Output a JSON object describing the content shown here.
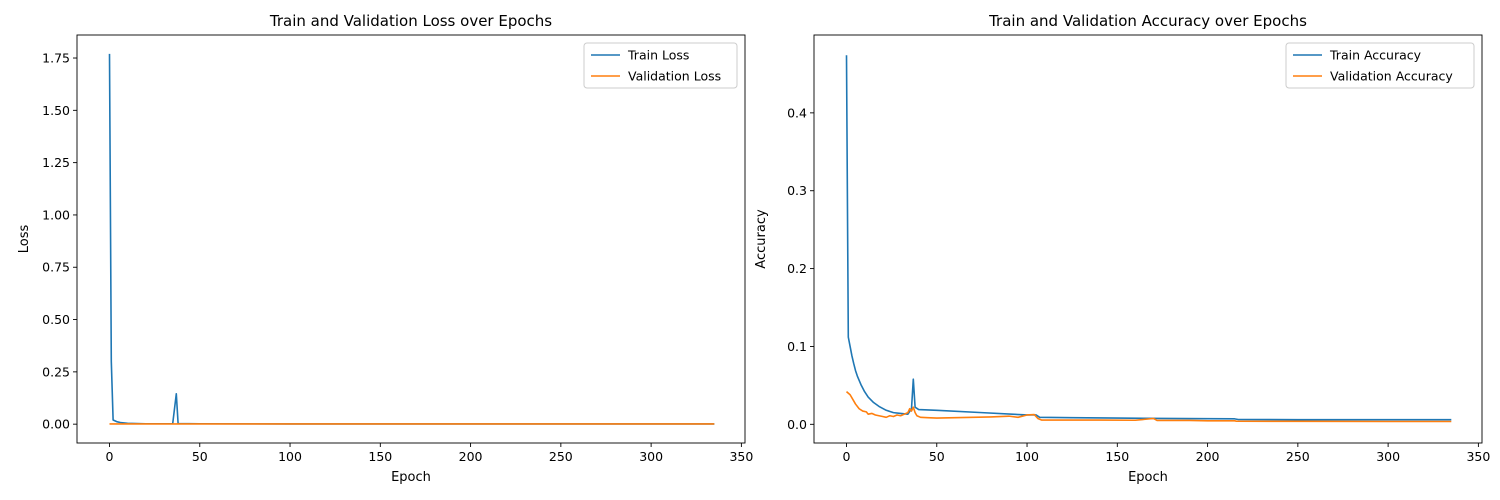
{
  "chart_data": [
    {
      "type": "line",
      "title": "Train and Validation Loss over Epochs",
      "xlabel": "Epoch",
      "ylabel": "Loss",
      "xlim": [
        -18,
        352
      ],
      "ylim": [
        -0.09,
        1.86
      ],
      "xticks": [
        0,
        50,
        100,
        150,
        200,
        250,
        300,
        350
      ],
      "xtick_labels": [
        "0",
        "50",
        "100",
        "150",
        "200",
        "250",
        "300",
        "350"
      ],
      "yticks": [
        0.0,
        0.25,
        0.5,
        0.75,
        1.0,
        1.25,
        1.5,
        1.75
      ],
      "ytick_labels": [
        "0.00",
        "0.25",
        "0.50",
        "0.75",
        "1.00",
        "1.25",
        "1.50",
        "1.75"
      ],
      "legend_position": "top-right",
      "grid": false,
      "series": [
        {
          "name": "Train Loss",
          "color": "#1f77b4",
          "points": [
            [
              0,
              1.77
            ],
            [
              1,
              0.3
            ],
            [
              2,
              0.02
            ],
            [
              4,
              0.012
            ],
            [
              6,
              0.008
            ],
            [
              10,
              0.004
            ],
            [
              20,
              0.002
            ],
            [
              35,
              0.002
            ],
            [
              37,
              0.145
            ],
            [
              38,
              0.003
            ],
            [
              50,
              0.002
            ],
            [
              100,
              0.001
            ],
            [
              200,
              0.001
            ],
            [
              335,
              0.001
            ]
          ]
        },
        {
          "name": "Validation Loss",
          "color": "#ff7f0e",
          "points": [
            [
              0,
              0.001
            ],
            [
              50,
              0.001
            ],
            [
              100,
              0.001
            ],
            [
              200,
              0.001
            ],
            [
              335,
              0.001
            ]
          ]
        }
      ]
    },
    {
      "type": "line",
      "title": "Train and Validation Accuracy over Epochs",
      "xlabel": "Epoch",
      "ylabel": "Accuracy",
      "xlim": [
        -18,
        352
      ],
      "ylim": [
        -0.024,
        0.5
      ],
      "xticks": [
        0,
        50,
        100,
        150,
        200,
        250,
        300,
        350
      ],
      "xtick_labels": [
        "0",
        "50",
        "100",
        "150",
        "200",
        "250",
        "300",
        "350"
      ],
      "yticks": [
        0.0,
        0.1,
        0.2,
        0.3,
        0.4
      ],
      "ytick_labels": [
        "0.0",
        "0.1",
        "0.2",
        "0.3",
        "0.4"
      ],
      "legend_position": "top-right",
      "grid": false,
      "series": [
        {
          "name": "Train Accuracy",
          "color": "#1f77b4",
          "points": [
            [
              0,
              0.474
            ],
            [
              1,
              0.112
            ],
            [
              2,
              0.1
            ],
            [
              3,
              0.088
            ],
            [
              4,
              0.078
            ],
            [
              5,
              0.069
            ],
            [
              6,
              0.062
            ],
            [
              8,
              0.051
            ],
            [
              10,
              0.042
            ],
            [
              12,
              0.035
            ],
            [
              15,
              0.028
            ],
            [
              18,
              0.023
            ],
            [
              22,
              0.018
            ],
            [
              26,
              0.015
            ],
            [
              30,
              0.014
            ],
            [
              34,
              0.013
            ],
            [
              36,
              0.02
            ],
            [
              37,
              0.058
            ],
            [
              38,
              0.022
            ],
            [
              40,
              0.019
            ],
            [
              50,
              0.018
            ],
            [
              75,
              0.015
            ],
            [
              100,
              0.012
            ],
            [
              105,
              0.012
            ],
            [
              107,
              0.009
            ],
            [
              125,
              0.0085
            ],
            [
              150,
              0.008
            ],
            [
              175,
              0.0075
            ],
            [
              200,
              0.0072
            ],
            [
              215,
              0.007
            ],
            [
              217,
              0.0062
            ],
            [
              250,
              0.006
            ],
            [
              300,
              0.006
            ],
            [
              335,
              0.006
            ]
          ]
        },
        {
          "name": "Validation Accuracy",
          "color": "#ff7f0e",
          "points": [
            [
              0,
              0.042
            ],
            [
              2,
              0.038
            ],
            [
              4,
              0.03
            ],
            [
              5,
              0.026
            ],
            [
              7,
              0.02
            ],
            [
              9,
              0.017
            ],
            [
              11,
              0.016
            ],
            [
              12,
              0.013
            ],
            [
              14,
              0.014
            ],
            [
              16,
              0.012
            ],
            [
              18,
              0.011
            ],
            [
              20,
              0.01
            ],
            [
              22,
              0.009
            ],
            [
              24,
              0.011
            ],
            [
              26,
              0.01
            ],
            [
              28,
              0.012
            ],
            [
              30,
              0.011
            ],
            [
              32,
              0.013
            ],
            [
              34,
              0.015
            ],
            [
              35,
              0.02
            ],
            [
              36,
              0.017
            ],
            [
              37,
              0.022
            ],
            [
              38,
              0.015
            ],
            [
              39,
              0.011
            ],
            [
              41,
              0.009
            ],
            [
              45,
              0.0085
            ],
            [
              50,
              0.008
            ],
            [
              60,
              0.0085
            ],
            [
              70,
              0.009
            ],
            [
              80,
              0.0095
            ],
            [
              90,
              0.0105
            ],
            [
              95,
              0.009
            ],
            [
              100,
              0.012
            ],
            [
              104,
              0.0125
            ],
            [
              106,
              0.0075
            ],
            [
              108,
              0.0055
            ],
            [
              120,
              0.0055
            ],
            [
              140,
              0.0055
            ],
            [
              160,
              0.0052
            ],
            [
              170,
              0.0075
            ],
            [
              172,
              0.005
            ],
            [
              190,
              0.005
            ],
            [
              200,
              0.0045
            ],
            [
              215,
              0.0045
            ],
            [
              216,
              0.004
            ],
            [
              250,
              0.0038
            ],
            [
              300,
              0.0036
            ],
            [
              335,
              0.0036
            ]
          ]
        }
      ]
    }
  ]
}
